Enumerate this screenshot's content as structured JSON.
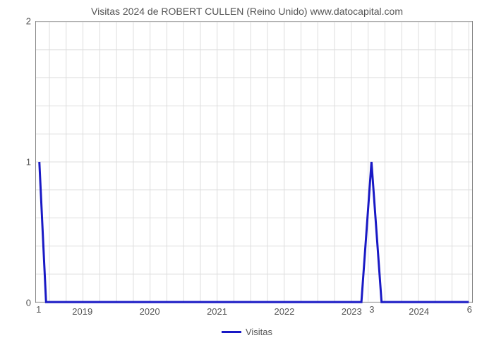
{
  "chart": {
    "type": "line",
    "title": "Visitas 2024 de ROBERT CULLEN (Reino Unido) www.datocapital.com",
    "title_fontsize": 14,
    "title_color": "#555555",
    "background_color": "#ffffff",
    "plot_border_color": "#888888",
    "grid_color": "#dddddd",
    "x_axis": {
      "min": 2018.3,
      "max": 2024.8,
      "tick_values": [
        2019,
        2020,
        2021,
        2022,
        2023,
        2024
      ],
      "tick_labels": [
        "2019",
        "2020",
        "2021",
        "2022",
        "2023",
        "2024"
      ],
      "tick_fontsize": 13,
      "tick_color": "#555555",
      "minor_grid_count_between": 3
    },
    "y_axis": {
      "min": 0,
      "max": 2,
      "tick_values": [
        0,
        1,
        2
      ],
      "tick_labels": [
        "0",
        "1",
        "2"
      ],
      "tick_fontsize": 13,
      "tick_color": "#555555",
      "minor_grid_count_between": 4
    },
    "series": [
      {
        "name": "Visitas",
        "color": "#1919c5",
        "line_width": 3,
        "x": [
          2018.35,
          2018.45,
          2023.15,
          2023.3,
          2023.45,
          2024.75
        ],
        "y": [
          1,
          0,
          0,
          1,
          0,
          0
        ]
      }
    ],
    "data_point_labels": [
      {
        "x": 2018.35,
        "y_offset_below_axis": 14,
        "text": "1"
      },
      {
        "x": 2023.3,
        "y_offset_below_axis": 14,
        "text": "3"
      },
      {
        "x": 2024.75,
        "y_offset_below_axis": 14,
        "text": "6"
      }
    ],
    "legend": {
      "position": "bottom-center",
      "fontsize": 13,
      "color": "#555555",
      "items": [
        {
          "label": "Visitas",
          "color": "#1919c5"
        }
      ]
    }
  }
}
